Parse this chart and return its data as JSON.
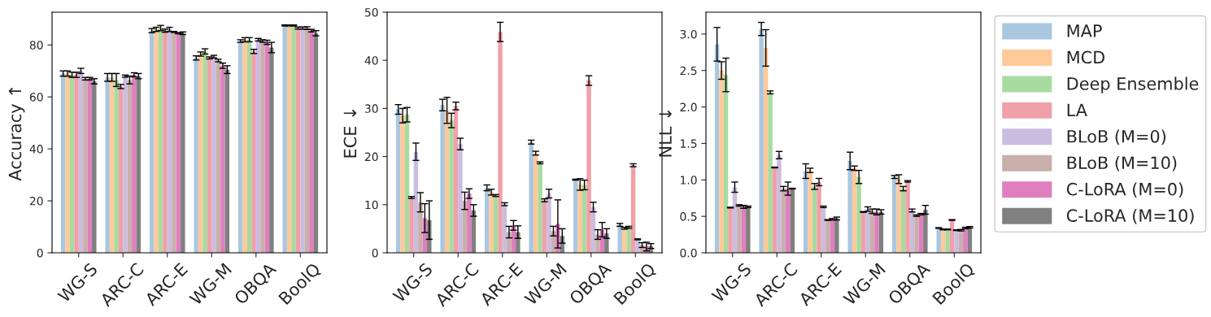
{
  "chart_data": [
    {
      "type": "bar",
      "ylabel": "Accuracy ↑",
      "categories": [
        "WG-S",
        "ARC-C",
        "ARC-E",
        "WG-M",
        "OBQA",
        "BoolQ"
      ],
      "ylim": [
        0,
        92.6
      ],
      "yticks": [
        0,
        20,
        40,
        60,
        80
      ],
      "grid": false,
      "legend": false,
      "series": [
        {
          "color": "#aac7e0",
          "values": [
            69,
            67.5,
            85.5,
            75,
            81.5,
            87.5
          ],
          "errors": [
            1,
            1.5,
            0.8,
            0.8,
            0.5,
            0.2
          ]
        },
        {
          "color": "#ffc99a",
          "values": [
            69,
            67.5,
            86,
            76.5,
            82,
            87.5
          ],
          "errors": [
            1,
            1.5,
            0.8,
            0.8,
            0.8,
            0.2
          ]
        },
        {
          "color": "#a8dba0",
          "values": [
            68.5,
            66.5,
            86.5,
            77.5,
            82,
            87.5
          ],
          "errors": [
            1,
            2.5,
            1,
            1,
            0.8,
            0.2
          ]
        },
        {
          "color": "#f0a0a8",
          "values": [
            68.5,
            64,
            85.5,
            75,
            77.5,
            86.5
          ],
          "errors": [
            1,
            0.8,
            0.6,
            0.4,
            0.8,
            0.4
          ]
        },
        {
          "color": "#cbbde0",
          "values": [
            70,
            68,
            86,
            75.5,
            82,
            86.5
          ],
          "errors": [
            1,
            0.4,
            0.8,
            0.5,
            0.5,
            0.4
          ]
        },
        {
          "color": "#c9b0aa",
          "values": [
            67,
            66.5,
            85,
            74,
            81.5,
            86.5
          ],
          "errors": [
            0.5,
            1.5,
            0.2,
            0.5,
            0.5,
            0.5
          ]
        },
        {
          "color": "#e07fc0",
          "values": [
            67,
            68.5,
            84.5,
            72,
            81,
            85.5
          ],
          "errors": [
            0.5,
            0.8,
            0.2,
            1,
            0.8,
            0.5
          ]
        },
        {
          "color": "#808080",
          "values": [
            66,
            68,
            84.5,
            70.5,
            79,
            84.5
          ],
          "errors": [
            1,
            1,
            0.5,
            1.5,
            2,
            1
          ]
        }
      ]
    },
    {
      "type": "bar",
      "ylabel": "ECE ↓",
      "categories": [
        "WG-S",
        "ARC-C",
        "ARC-E",
        "WG-M",
        "OBQA",
        "BoolQ"
      ],
      "ylim": [
        0,
        50
      ],
      "yticks": [
        0,
        10,
        20,
        30,
        40,
        50
      ],
      "grid": false,
      "legend": false,
      "series": [
        {
          "color": "#aac7e0",
          "values": [
            29.8,
            30.7,
            13.5,
            23,
            15.2,
            5.8
          ],
          "errors": [
            1,
            1.2,
            0.6,
            0.4,
            0.1,
            0.3
          ]
        },
        {
          "color": "#ffc99a",
          "values": [
            28.5,
            29.6,
            12.6,
            20.7,
            14.2,
            5.1
          ],
          "errors": [
            1.5,
            2.7,
            0.6,
            0.4,
            1.2,
            0.2
          ]
        },
        {
          "color": "#a8dba0",
          "values": [
            28.7,
            27.5,
            11.9,
            18.7,
            14.1,
            5.3
          ],
          "errors": [
            1.5,
            1.5,
            0.2,
            0.2,
            1,
            0.2
          ]
        },
        {
          "color": "#f0a0a8",
          "values": [
            11.5,
            30.5,
            45.9,
            10.9,
            35.8,
            18.2
          ],
          "errors": [
            0.2,
            0.8,
            2,
            0.3,
            1,
            0.3
          ]
        },
        {
          "color": "#cbbde0",
          "values": [
            21,
            22.6,
            10.1,
            12.3,
            9.5,
            2.8
          ],
          "errors": [
            1.8,
            1.2,
            0.3,
            0.9,
            1,
            0.1
          ]
        },
        {
          "color": "#c9b0aa",
          "values": [
            10.5,
            10.8,
            4.3,
            4.5,
            3.8,
            1.6
          ],
          "errors": [
            2,
            1.8,
            1.2,
            1,
            1,
            0.5
          ]
        },
        {
          "color": "#e07fc0",
          "values": [
            7.2,
            12.3,
            5.7,
            6,
            4.8,
            1.3
          ],
          "errors": [
            3,
            1,
            1,
            5,
            1.5,
            0.9
          ]
        },
        {
          "color": "#808080",
          "values": [
            6.8,
            8.8,
            4.3,
            3.5,
            4,
            1.4
          ],
          "errors": [
            4,
            1.2,
            1.3,
            1.5,
            1,
            0.5
          ]
        }
      ]
    },
    {
      "type": "bar",
      "ylabel": "NLL ↓",
      "categories": [
        "WG-S",
        "ARC-C",
        "ARC-E",
        "WG-M",
        "OBQA",
        "BoolQ"
      ],
      "ylim": [
        0,
        3.3
      ],
      "yticks": [
        {
          "value": 0,
          "label": "0.0"
        },
        {
          "value": 0.5,
          "label": "0.5"
        },
        {
          "value": 1,
          "label": "1.0"
        },
        {
          "value": 1.5,
          "label": "1.5"
        },
        {
          "value": 2,
          "label": "2.0"
        },
        {
          "value": 2.5,
          "label": "2.5"
        },
        {
          "value": 3,
          "label": "3.0"
        }
      ],
      "grid": false,
      "legend": "right",
      "series": [
        {
          "name": "MAP",
          "color": "#aac7e0",
          "values": [
            2.86,
            3.07,
            1.12,
            1.26,
            1.04,
            0.34
          ],
          "errors": [
            0.23,
            0.09,
            0.1,
            0.12,
            0.02,
            0.005
          ]
        },
        {
          "name": "MCD",
          "color": "#ffc99a",
          "values": [
            2.5,
            2.81,
            1.13,
            1.16,
            1.01,
            0.32
          ],
          "errors": [
            0.12,
            0.25,
            0.03,
            0.03,
            0.06,
            0.005
          ]
        },
        {
          "name": "Deep Ensemble",
          "color": "#a8dba0",
          "values": [
            2.44,
            2.2,
            0.91,
            1.04,
            0.88,
            0.32
          ],
          "errors": [
            0.23,
            0.02,
            0.04,
            0.09,
            0.03,
            0.005
          ]
        },
        {
          "name": "LA",
          "color": "#f0a0a8",
          "values": [
            0.62,
            1.17,
            0.97,
            0.56,
            0.98,
            0.45
          ],
          "errors": [
            0.005,
            0.005,
            0.05,
            0.005,
            0.01,
            0.005
          ]
        },
        {
          "name": "BLoB (M=0)",
          "color": "#cbbde0",
          "values": [
            0.9,
            1.34,
            0.63,
            0.6,
            0.58,
            0.31
          ],
          "errors": [
            0.07,
            0.05,
            0.01,
            0.03,
            0.02,
            0.005
          ]
        },
        {
          "name": "BLoB (M=10)",
          "color": "#c9b0aa",
          "values": [
            0.65,
            0.88,
            0.45,
            0.57,
            0.51,
            0.31
          ],
          "errors": [
            0.01,
            0.03,
            0.005,
            0.03,
            0.01,
            0.01
          ]
        },
        {
          "name": "C-LoRA (M=0)",
          "color": "#e07fc0",
          "values": [
            0.63,
            0.88,
            0.46,
            0.56,
            0.53,
            0.34
          ],
          "errors": [
            0.02,
            0.09,
            0.01,
            0.04,
            0.01,
            0.01
          ]
        },
        {
          "name": "C-LoRA (M=10)",
          "color": "#808080",
          "values": [
            0.63,
            0.88,
            0.47,
            0.56,
            0.59,
            0.35
          ],
          "errors": [
            0.01,
            0.005,
            0.02,
            0.03,
            0.06,
            0.01
          ]
        }
      ]
    }
  ]
}
